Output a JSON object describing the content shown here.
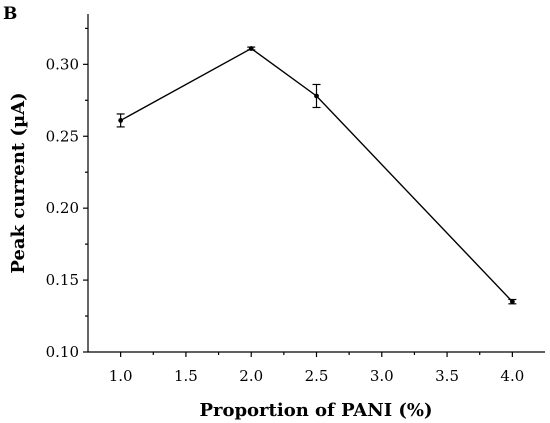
{
  "panel_label": "B",
  "chart_data": {
    "type": "line",
    "xlabel": "Proportion of PANI (%)",
    "ylabel": "Peak current (µA)",
    "xlim": [
      0.75,
      4.25
    ],
    "ylim": [
      0.1,
      0.335
    ],
    "x_ticks": [
      1.0,
      1.5,
      2.0,
      2.5,
      3.0,
      3.5,
      4.0
    ],
    "x_tick_labels": [
      "1.0",
      "1.5",
      "2.0",
      "2.5",
      "3.0",
      "3.5",
      "4.0"
    ],
    "y_ticks": [
      0.1,
      0.15,
      0.2,
      0.25,
      0.3
    ],
    "y_tick_labels": [
      "0.10",
      "0.15",
      "0.20",
      "0.25",
      "0.30"
    ],
    "grid": false,
    "series": [
      {
        "x": [
          1.0,
          2.0,
          2.5,
          4.0
        ],
        "y": [
          0.261,
          0.311,
          0.278,
          0.135
        ],
        "err": [
          0.0045,
          0.001,
          0.008,
          0.0015
        ]
      }
    ]
  }
}
